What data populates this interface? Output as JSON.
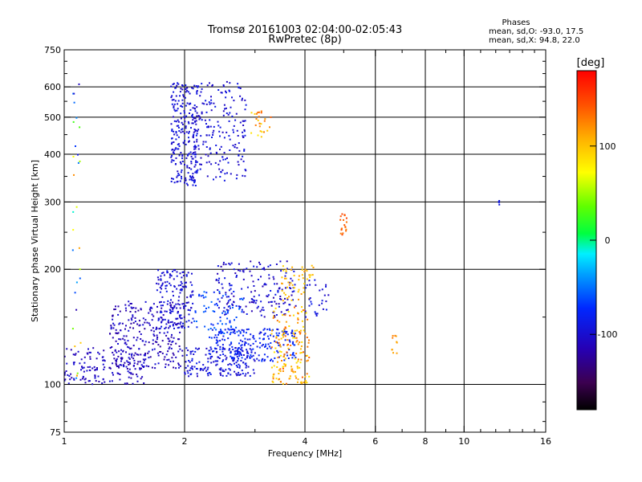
{
  "chart_data": {
    "type": "scatter",
    "title": "Tromsø 20161003 02:04:00-02:05:43",
    "subtitle": "RwPretec (8p)",
    "xlabel": "Frequency [MHz]",
    "ylabel": "Stationary phase Virtual Height [km]",
    "x_scale": "log",
    "y_scale": "log",
    "xlim": [
      1,
      16
    ],
    "ylim": [
      75,
      750
    ],
    "x_ticks": [
      1,
      2,
      4,
      6,
      8,
      10,
      16
    ],
    "y_ticks": [
      75,
      100,
      200,
      300,
      400,
      500,
      600,
      750
    ],
    "x_gridlines": [
      2,
      4,
      6,
      8,
      10
    ],
    "y_gridlines": [
      100,
      200,
      300,
      400,
      500,
      600
    ],
    "grid": true,
    "legend": {
      "heading": "Phases",
      "lines": [
        "mean, sd,O: -93.0, 17.5",
        "mean, sd,X:  94.8, 22.0"
      ]
    },
    "colorbar": {
      "label": "[deg]",
      "range": [
        -180,
        180
      ],
      "ticks": [
        100,
        0,
        -100
      ]
    },
    "clusters": [
      {
        "x": [
          1.0,
          1.6
        ],
        "y": [
          100,
          125
        ],
        "phase": [
          -120,
          -95
        ],
        "n": 170
      },
      {
        "x": [
          1.3,
          2.0
        ],
        "y": [
          110,
          165
        ],
        "phase": [
          -125,
          -95
        ],
        "n": 260
      },
      {
        "x": [
          1.7,
          2.1
        ],
        "y": [
          140,
          200
        ],
        "phase": [
          -110,
          -85
        ],
        "n": 160
      },
      {
        "x": [
          2.0,
          3.0
        ],
        "y": [
          105,
          125
        ],
        "phase": [
          -110,
          -80
        ],
        "n": 180
      },
      {
        "x": [
          2.3,
          3.8
        ],
        "y": [
          115,
          140
        ],
        "phase": [
          -95,
          -65
        ],
        "n": 210
      },
      {
        "x": [
          2.4,
          3.8
        ],
        "y": [
          150,
          210
        ],
        "phase": [
          -120,
          -85
        ],
        "n": 180
      },
      {
        "x": [
          2.1,
          2.8
        ],
        "y": [
          135,
          175
        ],
        "phase": [
          -80,
          -50
        ],
        "n": 70
      },
      {
        "x": [
          3.3,
          4.1
        ],
        "y": [
          100,
          160
        ],
        "phase": [
          80,
          140
        ],
        "n": 160
      },
      {
        "x": [
          3.5,
          4.2
        ],
        "y": [
          165,
          205
        ],
        "phase": [
          90,
          120
        ],
        "n": 50
      },
      {
        "x": [
          4.0,
          4.6
        ],
        "y": [
          150,
          190
        ],
        "phase": [
          -110,
          -80
        ],
        "n": 30
      },
      {
        "x": [
          1.85,
          2.15
        ],
        "y": [
          330,
          620
        ],
        "phase": [
          -110,
          -85
        ],
        "n": 230
      },
      {
        "x": [
          2.1,
          2.85
        ],
        "y": [
          340,
          620
        ],
        "phase": [
          -110,
          -85
        ],
        "n": 210
      },
      {
        "x": [
          2.9,
          3.3
        ],
        "y": [
          440,
          520
        ],
        "phase": [
          80,
          140
        ],
        "n": 25
      },
      {
        "x": [
          4.9,
          5.1
        ],
        "y": [
          240,
          280
        ],
        "phase": [
          120,
          150
        ],
        "n": 20
      },
      {
        "x": [
          1.05,
          1.1
        ],
        "y": [
          100,
          620
        ],
        "phase": [
          -120,
          130
        ],
        "n": 30
      },
      {
        "x": [
          6.6,
          6.8
        ],
        "y": [
          120,
          135
        ],
        "phase": [
          110,
          130
        ],
        "n": 10
      },
      {
        "x": [
          12.2,
          12.4
        ],
        "y": [
          295,
          305
        ],
        "phase": [
          -90,
          -90
        ],
        "n": 4
      }
    ]
  }
}
